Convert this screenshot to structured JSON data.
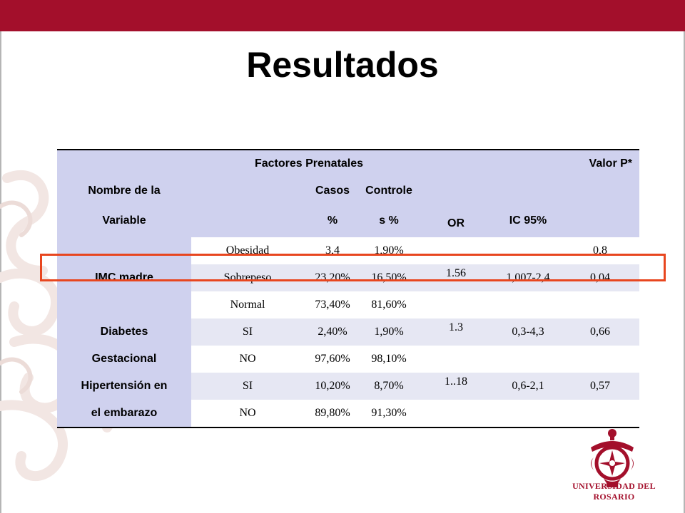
{
  "slide": {
    "title": "Resultados",
    "brand_color": "#a30f2b",
    "header_fill": "#cfd1ee",
    "highlight_color": "#e8461f"
  },
  "table": {
    "header": {
      "group_label": "Factores Prenatales",
      "pvalue_label": "Valor P*",
      "variable_line1": "Nombre de la",
      "variable_line2": "Variable",
      "casos_line1": "Casos",
      "casos_line2": "%",
      "controles_line1": "Controle",
      "controles_line2": "s %",
      "or_label": "OR",
      "ic_label": "IC 95%"
    },
    "rows": [
      {
        "variable": "",
        "category": "Obesidad",
        "casos": "3,4",
        "controles": "1,90%",
        "or": "",
        "ic": "",
        "p": "0,8"
      },
      {
        "variable": "IMC madre",
        "category": "Sobrepeso",
        "casos": "23,20%",
        "controles": "16,50%",
        "or": "1.56",
        "ic": "1,007-2,4",
        "p": "0,04"
      },
      {
        "variable": "",
        "category": "Normal",
        "casos": "73,40%",
        "controles": "81,60%",
        "or": "",
        "ic": "",
        "p": ""
      },
      {
        "variable": "Diabetes",
        "category": "SI",
        "casos": "2,40%",
        "controles": "1,90%",
        "or": "1.3",
        "ic": "0,3-4,3",
        "p": "0,66"
      },
      {
        "variable": "Gestacional",
        "category": "NO",
        "casos": "97,60%",
        "controles": "98,10%",
        "or": "",
        "ic": "",
        "p": ""
      },
      {
        "variable": "Hipertensión en",
        "category": "SI",
        "casos": "10,20%",
        "controles": "8,70%",
        "or": "1..18",
        "ic": "0,6-2,1",
        "p": "0,57"
      },
      {
        "variable": "el embarazo",
        "category": "NO",
        "casos": "89,80%",
        "controles": "91,30%",
        "or": "",
        "ic": "",
        "p": ""
      }
    ]
  },
  "logo": {
    "name": "UNIVERSIDAD DEL ROSARIO",
    "icon": "university-crest-icon"
  }
}
